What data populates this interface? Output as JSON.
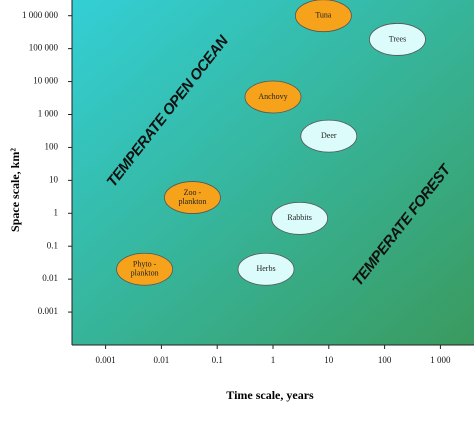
{
  "chart_data": {
    "type": "scatter",
    "x_label": "Time scale, years",
    "y_label": "Space scale, km²",
    "log_x": true,
    "log_y": true,
    "xlim": [
      0.00025,
      4000
    ],
    "ylim": [
      0.0001,
      3000000
    ],
    "xticks": [
      0.001,
      0.01,
      0.1,
      1,
      10,
      100,
      {
        "value": 1000,
        "label": "1 000"
      }
    ],
    "yticks": [
      0.001,
      0.01,
      0.1,
      1,
      10,
      100,
      {
        "value": 1000,
        "label": "1 000"
      },
      {
        "value": 10000,
        "label": "10 000"
      },
      {
        "value": 100000,
        "label": "100 000"
      },
      {
        "value": 1000000,
        "label": "1 000 000"
      }
    ],
    "points": [
      {
        "label": "Tuna",
        "x": 8,
        "y": 1000000,
        "color": "#f7a21b"
      },
      {
        "label": "Trees",
        "x": 170,
        "y": 190000,
        "color": "#dcfbfb"
      },
      {
        "label": "Anchovy",
        "x": 1,
        "y": 3400,
        "color": "#f7a21b"
      },
      {
        "label": "Deer",
        "x": 10,
        "y": 220,
        "color": "#dcfbfb"
      },
      {
        "label": [
          "Zoo -",
          "plankton"
        ],
        "x": 0.036,
        "y": 3,
        "color": "#f7a21b"
      },
      {
        "label": "Rabbits",
        "x": 3,
        "y": 0.7,
        "color": "#dcfbfb"
      },
      {
        "label": "Herbs",
        "x": 0.75,
        "y": 0.02,
        "color": "#dcfbfb"
      },
      {
        "label": [
          "Phyto -",
          "plankton"
        ],
        "x": 0.005,
        "y": 0.02,
        "color": "#f7a21b"
      }
    ],
    "annotations": [
      "TEMPERATE  OPEN  OCEAN",
      "TEMPERATE   FOREST"
    ]
  }
}
